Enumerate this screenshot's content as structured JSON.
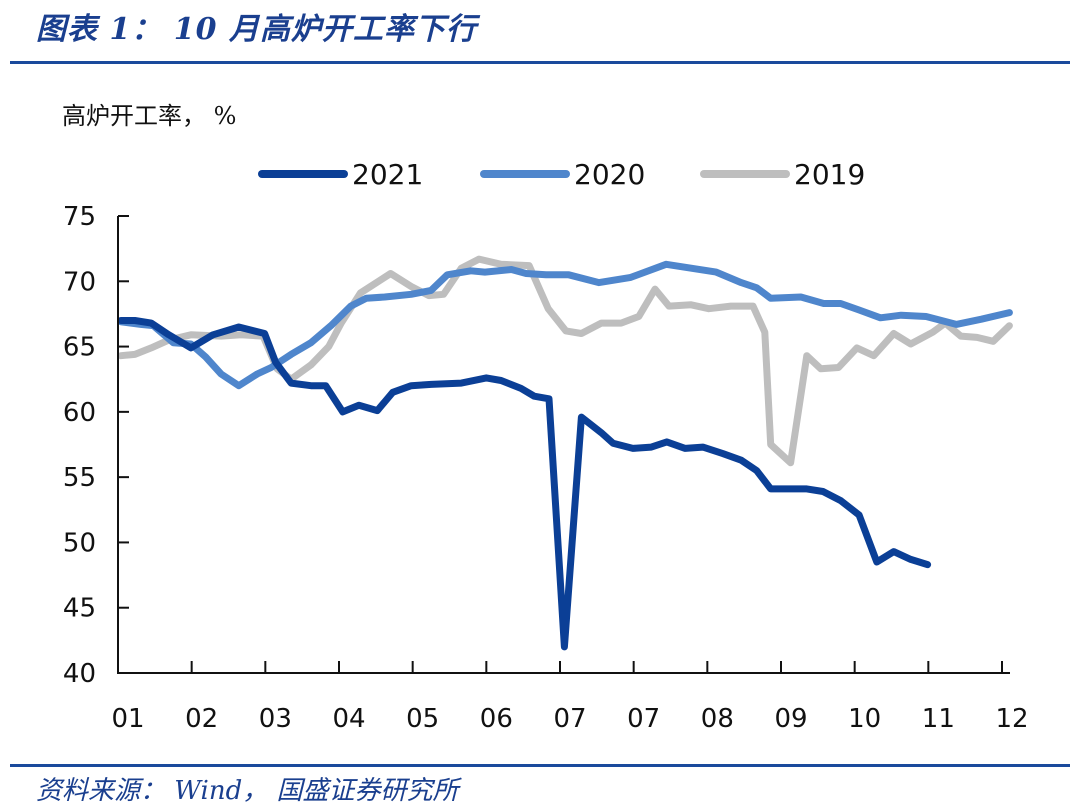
{
  "header": {
    "figure_title": "图表 1： 10 月高炉开工率下行",
    "unit_label": "高炉开工率， %"
  },
  "footer": {
    "source": "资料来源： Wind， 国盛证券研究所"
  },
  "chart_data": {
    "type": "line",
    "title": "图表 1： 10 月高炉开工率下行",
    "ylabel": "高炉开工率， %",
    "xlabel": "",
    "ylim": [
      40,
      75
    ],
    "yticks": [
      40,
      45,
      50,
      55,
      60,
      65,
      70,
      75
    ],
    "xlim": [
      0,
      12
    ],
    "x_tick_labels": [
      "01",
      "02",
      "03",
      "04",
      "05",
      "06",
      "07",
      "07",
      "08",
      "09",
      "10",
      "11",
      "12"
    ],
    "grid": false,
    "legend_position": "top",
    "series": [
      {
        "name": "2021",
        "color": "#0b3f96",
        "x": [
          0.04,
          0.23,
          0.45,
          0.69,
          0.99,
          1.29,
          1.64,
          1.99,
          2.14,
          2.35,
          2.62,
          2.82,
          3.05,
          3.27,
          3.52,
          3.73,
          3.98,
          4.25,
          4.66,
          5.0,
          5.2,
          5.47,
          5.65,
          5.85,
          6.06,
          6.29,
          6.56,
          6.72,
          6.99,
          7.24,
          7.45,
          7.7,
          7.94,
          8.21,
          8.46,
          8.67,
          8.86,
          9.08,
          9.35,
          9.57,
          9.81,
          10.06,
          10.3,
          10.53,
          10.76,
          10.99
        ],
        "y": [
          67.0,
          67.0,
          66.8,
          65.9,
          64.9,
          65.9,
          66.5,
          66.0,
          63.8,
          62.2,
          62.0,
          62.0,
          60.0,
          60.5,
          60.1,
          61.5,
          62.0,
          62.1,
          62.2,
          62.6,
          62.4,
          61.8,
          61.2,
          61.0,
          42.0,
          59.6,
          58.4,
          57.6,
          57.2,
          57.3,
          57.7,
          57.2,
          57.3,
          56.8,
          56.3,
          55.5,
          54.1,
          54.1,
          54.1,
          53.9,
          53.2,
          52.1,
          48.5,
          49.3,
          48.7,
          48.3
        ]
      },
      {
        "name": "2020",
        "color": "#4f86cc",
        "x": [
          0.04,
          0.31,
          0.48,
          0.75,
          0.99,
          1.19,
          1.4,
          1.64,
          1.89,
          2.08,
          2.35,
          2.62,
          2.89,
          3.16,
          3.37,
          3.62,
          3.98,
          4.25,
          4.47,
          4.79,
          4.98,
          5.34,
          5.54,
          5.81,
          6.12,
          6.53,
          6.96,
          7.44,
          7.78,
          8.12,
          8.46,
          8.67,
          8.86,
          9.27,
          9.58,
          9.81,
          10.06,
          10.35,
          10.63,
          10.97,
          11.38,
          11.72,
          12.1
        ],
        "y": [
          66.9,
          66.7,
          66.6,
          65.3,
          65.2,
          64.2,
          62.9,
          62.0,
          62.9,
          63.4,
          64.4,
          65.3,
          66.6,
          68.1,
          68.7,
          68.8,
          69.0,
          69.3,
          70.5,
          70.8,
          70.7,
          70.9,
          70.6,
          70.5,
          70.5,
          69.9,
          70.3,
          71.3,
          71.0,
          70.7,
          69.9,
          69.5,
          68.7,
          68.8,
          68.3,
          68.3,
          67.8,
          67.2,
          67.4,
          67.3,
          66.7,
          67.1,
          67.6
        ]
      },
      {
        "name": "2019",
        "color": "#bebebe",
        "x": [
          0.04,
          0.23,
          0.45,
          0.69,
          0.99,
          1.4,
          1.67,
          1.97,
          2.16,
          2.35,
          2.62,
          2.86,
          3.03,
          3.29,
          3.7,
          3.98,
          4.22,
          4.42,
          4.66,
          4.9,
          5.2,
          5.58,
          5.84,
          6.08,
          6.29,
          6.56,
          6.83,
          7.07,
          7.29,
          7.48,
          7.78,
          8.02,
          8.32,
          8.62,
          8.78,
          8.86,
          9.13,
          9.35,
          9.54,
          9.78,
          10.03,
          10.26,
          10.53,
          10.76,
          11.06,
          11.23,
          11.44,
          11.66,
          11.88,
          12.1
        ],
        "y": [
          64.3,
          64.4,
          64.9,
          65.5,
          65.9,
          65.8,
          65.9,
          65.8,
          63.3,
          62.5,
          63.6,
          65.0,
          66.8,
          69.1,
          70.6,
          69.6,
          68.9,
          69.0,
          71.0,
          71.7,
          71.3,
          71.2,
          67.9,
          66.2,
          66.0,
          66.8,
          66.8,
          67.3,
          69.4,
          68.1,
          68.2,
          67.9,
          68.1,
          68.1,
          66.1,
          57.5,
          56.1,
          64.3,
          63.3,
          63.4,
          64.9,
          64.3,
          66.0,
          65.2,
          66.1,
          66.8,
          65.8,
          65.7,
          65.4,
          66.6
        ]
      }
    ]
  }
}
